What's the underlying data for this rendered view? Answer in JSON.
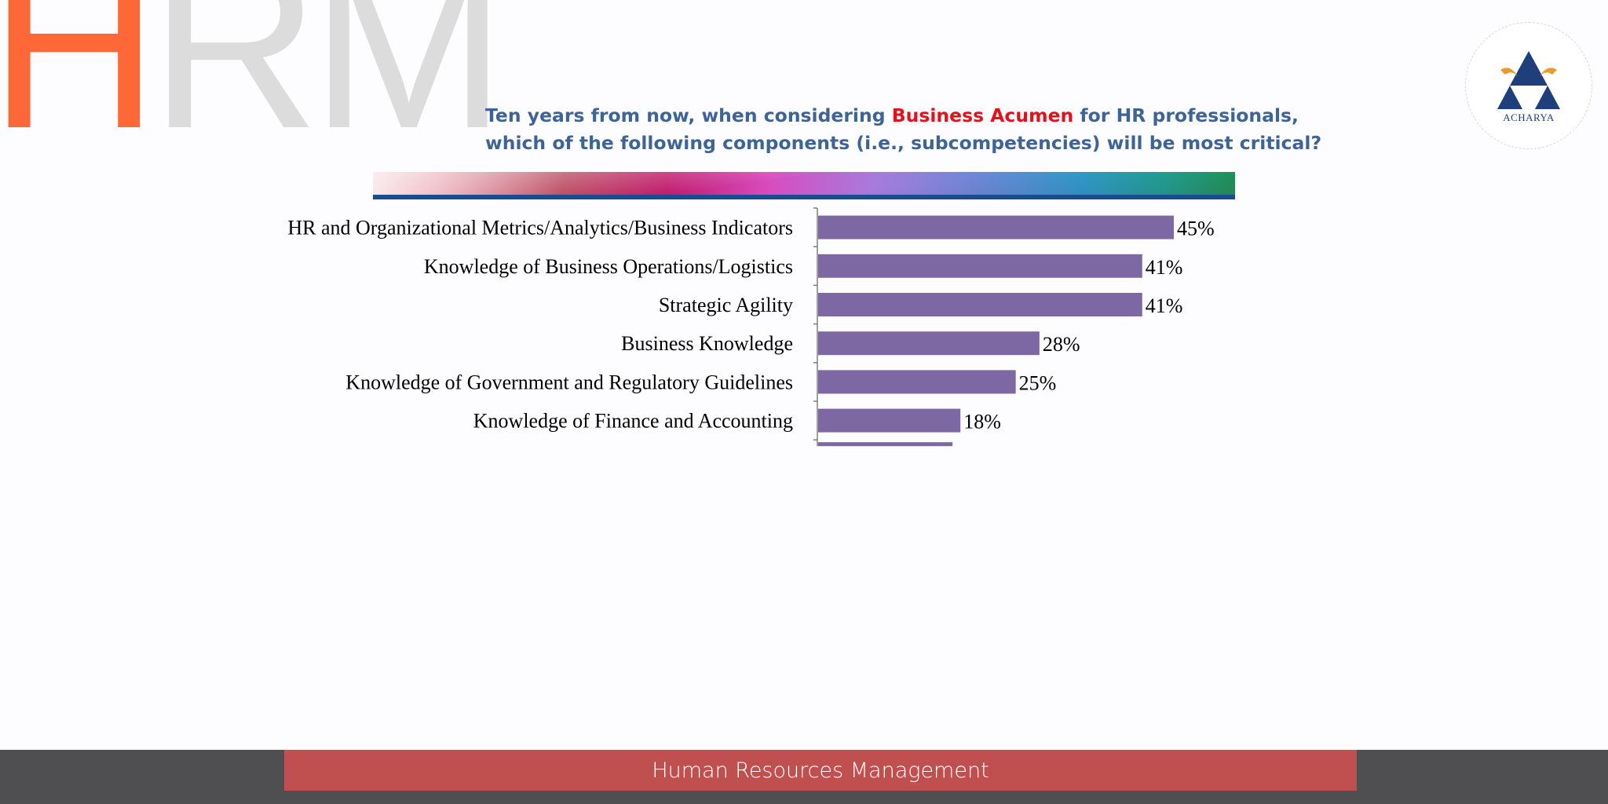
{
  "logo": {
    "h": "H",
    "rm": "RM",
    "badge_text": "ACHARYA"
  },
  "question": {
    "line1_before": "Ten years from now, when considering ",
    "highlight": "Business Acumen",
    "line1_after": " for HR professionals,",
    "line2": "which of the following components (i.e., subcompetencies) will be most critical?"
  },
  "colors": {
    "bar": "#7e68a3",
    "question_text": "#3e6497",
    "highlight": "#e3111b",
    "footer_bar": "#c05050",
    "footer_band": "#4f4e50"
  },
  "chart_data": {
    "type": "bar",
    "orientation": "horizontal",
    "categories": [
      "HR and Organizational Metrics/Analytics/Business Indicators",
      "Knowledge of Business Operations/Logistics",
      "Strategic Agility",
      "Business Knowledge",
      "Knowledge of Government and Regulatory Guidelines",
      "Knowledge of Finance and Accounting"
    ],
    "values": [
      45,
      41,
      41,
      28,
      25,
      18
    ],
    "value_labels": [
      "45%",
      "41%",
      "41%",
      "28%",
      "25%",
      "18%"
    ],
    "partial_bar_value": 17,
    "unit": "%",
    "xlim": [
      0,
      100
    ],
    "grid": false,
    "legend": "none"
  },
  "footer": {
    "label": "Human Resources Management"
  }
}
